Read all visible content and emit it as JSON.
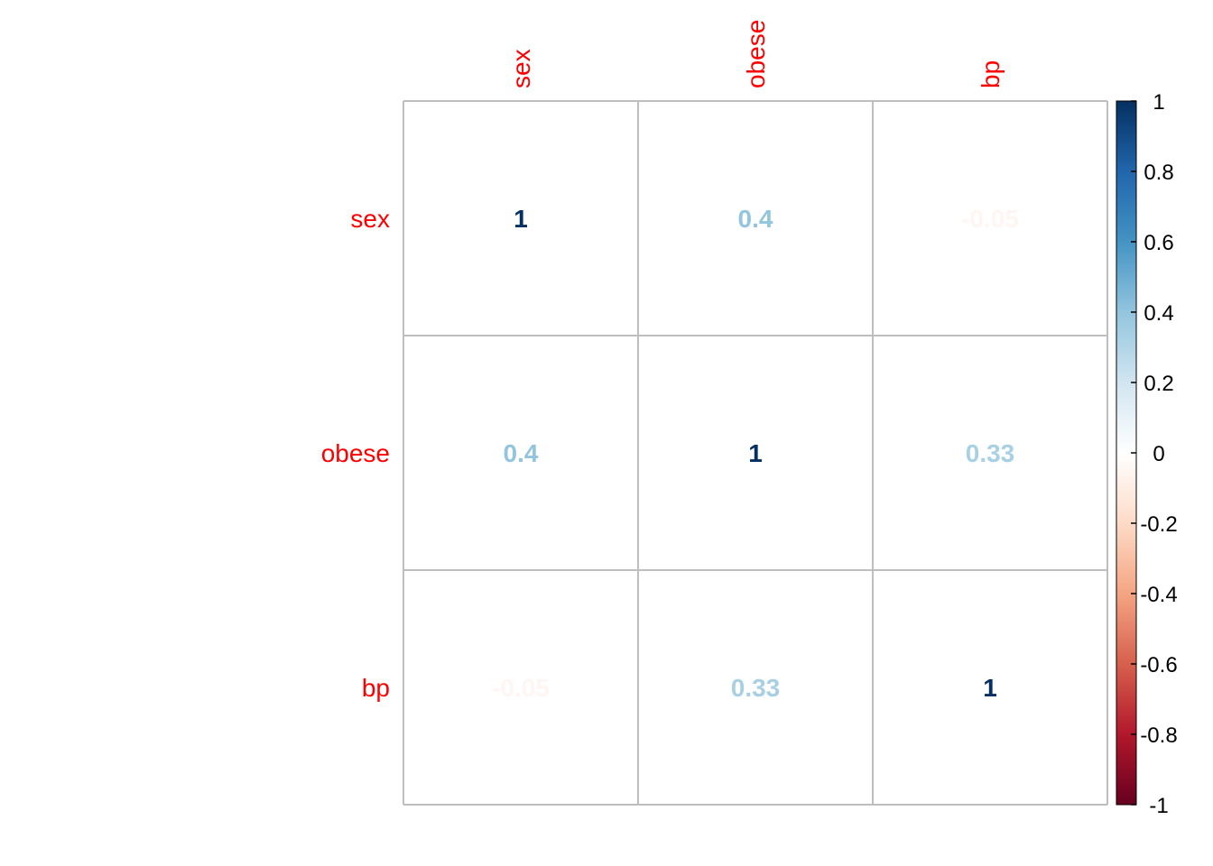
{
  "chart_data": {
    "type": "heatmap",
    "variables": [
      "sex",
      "obese",
      "bp"
    ],
    "matrix": [
      [
        1,
        0.4,
        -0.05
      ],
      [
        0.4,
        1,
        0.33
      ],
      [
        -0.05,
        0.33,
        1
      ]
    ],
    "cell_labels": [
      [
        "1",
        "0.4",
        "-0.05"
      ],
      [
        "0.4",
        "1",
        "0.33"
      ],
      [
        "-0.05",
        "0.33",
        "1"
      ]
    ],
    "colorbar": {
      "range": [
        -1,
        1
      ],
      "ticks": [
        1,
        0.8,
        0.6,
        0.4,
        0.2,
        0,
        -0.2,
        -0.4,
        -0.6,
        -0.8,
        -1
      ],
      "tick_labels": [
        "1",
        "0.8",
        "0.6",
        "0.4",
        "0.2",
        "0",
        "-0.2",
        "-0.4",
        "-0.6",
        "-0.8",
        "-1"
      ],
      "colors": [
        "#67001F",
        "#B2182B",
        "#D6604D",
        "#F4A582",
        "#FDDBC7",
        "#FFFFFF",
        "#D1E5F0",
        "#92C5DE",
        "#4393C3",
        "#2166AC",
        "#053061"
      ]
    },
    "label_color": "#FF0000",
    "grid_color": "#BEBEBE",
    "legend": "right"
  }
}
